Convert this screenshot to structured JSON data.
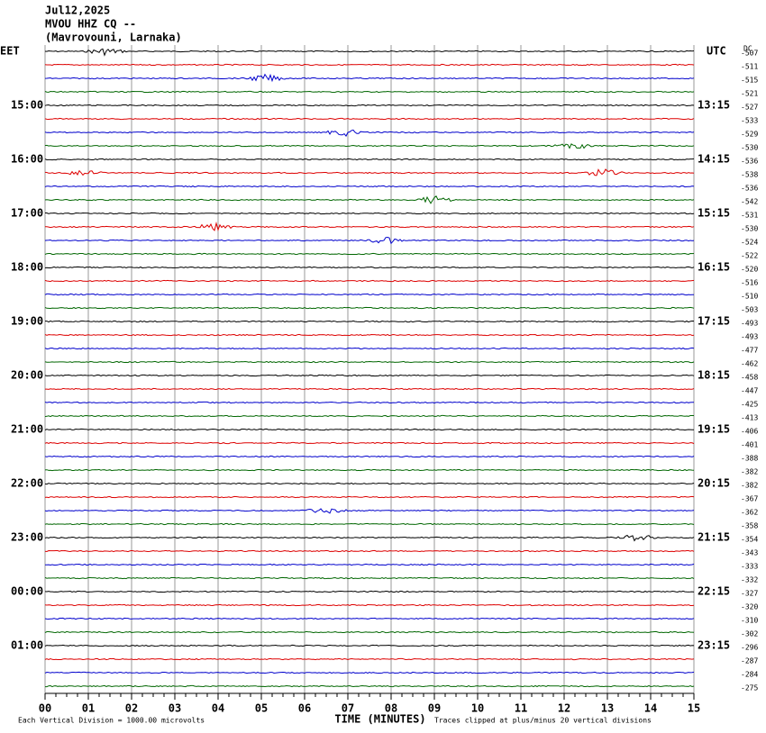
{
  "header": {
    "date": "Jul12,2025",
    "station": "MVOU HHZ CQ --",
    "location": "(Mavrovouni, Larnaka)"
  },
  "left_zone": "EET",
  "right_zone": "UTC",
  "dc_header": "DC",
  "left_times": [
    "15:00",
    "16:00",
    "17:00",
    "18:00",
    "19:00",
    "20:00",
    "21:00",
    "22:00",
    "23:00",
    "00:00",
    "01:00"
  ],
  "right_times": [
    "13:15",
    "14:15",
    "15:15",
    "16:15",
    "17:15",
    "18:15",
    "19:15",
    "20:15",
    "21:15",
    "22:15",
    "23:15"
  ],
  "dc_offsets": [
    -507,
    -511,
    -515,
    -521,
    -527,
    -533,
    -529,
    -530,
    -536,
    -538,
    -536,
    -542,
    -531,
    -530,
    -524,
    -522,
    -520,
    -516,
    -510,
    -503,
    -493,
    -493,
    -477,
    -462,
    -458,
    -447,
    -425,
    -413,
    -406,
    -401,
    -388,
    -382,
    -382,
    -367,
    -362,
    -358,
    -354,
    -343,
    -333,
    -332,
    -327,
    -320,
    -310,
    -302,
    -296,
    -287,
    -284,
    -275
  ],
  "x_labels": [
    "00",
    "01",
    "02",
    "03",
    "04",
    "05",
    "06",
    "07",
    "08",
    "09",
    "10",
    "11",
    "12",
    "13",
    "14",
    "15"
  ],
  "footer": {
    "scale": "Each Vertical Division = 1000.00 microvolts",
    "axis_title": "TIME (MINUTES)",
    "clip_note": "Traces clipped at plus/minus 20 vertical divisions"
  }
}
